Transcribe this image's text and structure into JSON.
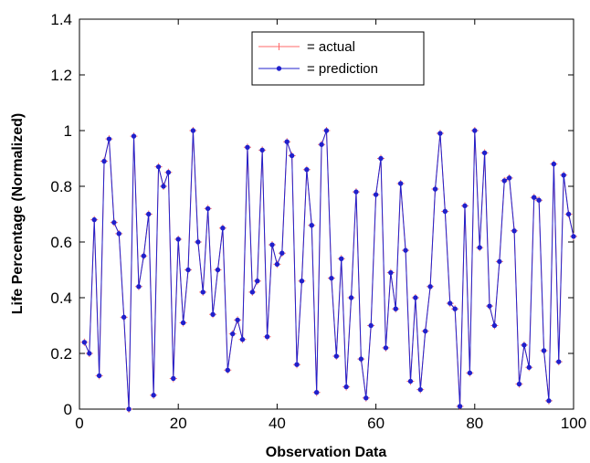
{
  "chart_data": {
    "type": "line",
    "title": "",
    "xlabel": "Observation Data",
    "ylabel": "Life Percentage (Normalized)",
    "xlim": [
      0,
      100
    ],
    "ylim": [
      0,
      1.4
    ],
    "x_ticks": [
      "0",
      "20",
      "40",
      "60",
      "80",
      "100"
    ],
    "y_ticks": [
      "0",
      "0.2",
      "0.4",
      "0.6",
      "0.8",
      "1",
      "1.2",
      "1.4"
    ],
    "grid": false,
    "legend_position": "top-center",
    "series": [
      {
        "name": "= actual",
        "color": "#ff6a6a",
        "marker": "plus",
        "x": [
          1,
          2,
          3,
          4,
          5,
          6,
          7,
          8,
          9,
          10,
          11,
          12,
          13,
          14,
          15,
          16,
          17,
          18,
          19,
          20,
          21,
          22,
          23,
          24,
          25,
          26,
          27,
          28,
          29,
          30,
          31,
          32,
          33,
          34,
          35,
          36,
          37,
          38,
          39,
          40,
          41,
          42,
          43,
          44,
          45,
          46,
          47,
          48,
          49,
          50,
          51,
          52,
          53,
          54,
          55,
          56,
          57,
          58,
          59,
          60,
          61,
          62,
          63,
          64,
          65,
          66,
          67,
          68,
          69,
          70,
          71,
          72,
          73,
          74,
          75,
          76,
          77,
          78,
          79,
          80,
          81,
          82,
          83,
          84,
          85,
          86,
          87,
          88,
          89,
          90,
          91,
          92,
          93,
          94,
          95,
          96,
          97,
          98,
          99,
          100
        ],
        "y": [
          0.24,
          0.2,
          0.68,
          0.12,
          0.89,
          0.97,
          0.67,
          0.63,
          0.33,
          0.0,
          0.98,
          0.44,
          0.55,
          0.7,
          0.05,
          0.87,
          0.8,
          0.85,
          0.11,
          0.61,
          0.31,
          0.5,
          1.0,
          0.6,
          0.42,
          0.72,
          0.34,
          0.5,
          0.65,
          0.14,
          0.27,
          0.32,
          0.25,
          0.94,
          0.42,
          0.46,
          0.93,
          0.26,
          0.59,
          0.52,
          0.56,
          0.96,
          0.91,
          0.16,
          0.46,
          0.86,
          0.66,
          0.06,
          0.95,
          1.0,
          0.47,
          0.19,
          0.54,
          0.08,
          0.4,
          0.78,
          0.18,
          0.04,
          0.3,
          0.77,
          0.9,
          0.22,
          0.49,
          0.36,
          0.81,
          0.57,
          0.1,
          0.4,
          0.07,
          0.28,
          0.44,
          0.79,
          0.99,
          0.71,
          0.38,
          0.36,
          0.01,
          0.73,
          0.13,
          1.0,
          0.58,
          0.92,
          0.37,
          0.3,
          0.53,
          0.82,
          0.83,
          0.64,
          0.09,
          0.23,
          0.15,
          0.76,
          0.75,
          0.21,
          0.03,
          0.88,
          0.17,
          0.84,
          0.7,
          0.62
        ]
      },
      {
        "name": "= prediction",
        "color": "#2020cc",
        "marker": "dot",
        "x": [
          1,
          2,
          3,
          4,
          5,
          6,
          7,
          8,
          9,
          10,
          11,
          12,
          13,
          14,
          15,
          16,
          17,
          18,
          19,
          20,
          21,
          22,
          23,
          24,
          25,
          26,
          27,
          28,
          29,
          30,
          31,
          32,
          33,
          34,
          35,
          36,
          37,
          38,
          39,
          40,
          41,
          42,
          43,
          44,
          45,
          46,
          47,
          48,
          49,
          50,
          51,
          52,
          53,
          54,
          55,
          56,
          57,
          58,
          59,
          60,
          61,
          62,
          63,
          64,
          65,
          66,
          67,
          68,
          69,
          70,
          71,
          72,
          73,
          74,
          75,
          76,
          77,
          78,
          79,
          80,
          81,
          82,
          83,
          84,
          85,
          86,
          87,
          88,
          89,
          90,
          91,
          92,
          93,
          94,
          95,
          96,
          97,
          98,
          99,
          100
        ],
        "y": [
          0.24,
          0.2,
          0.68,
          0.12,
          0.89,
          0.97,
          0.67,
          0.63,
          0.33,
          0.0,
          0.98,
          0.44,
          0.55,
          0.7,
          0.05,
          0.87,
          0.8,
          0.85,
          0.11,
          0.61,
          0.31,
          0.5,
          1.0,
          0.6,
          0.42,
          0.72,
          0.34,
          0.5,
          0.65,
          0.14,
          0.27,
          0.32,
          0.25,
          0.94,
          0.42,
          0.46,
          0.93,
          0.26,
          0.59,
          0.52,
          0.56,
          0.96,
          0.91,
          0.16,
          0.46,
          0.86,
          0.66,
          0.06,
          0.95,
          1.0,
          0.47,
          0.19,
          0.54,
          0.08,
          0.4,
          0.78,
          0.18,
          0.04,
          0.3,
          0.77,
          0.9,
          0.22,
          0.49,
          0.36,
          0.81,
          0.57,
          0.1,
          0.4,
          0.07,
          0.28,
          0.44,
          0.79,
          0.99,
          0.71,
          0.38,
          0.36,
          0.01,
          0.73,
          0.13,
          1.0,
          0.58,
          0.92,
          0.37,
          0.3,
          0.53,
          0.82,
          0.83,
          0.64,
          0.09,
          0.23,
          0.15,
          0.76,
          0.75,
          0.21,
          0.03,
          0.88,
          0.17,
          0.84,
          0.7,
          0.62
        ]
      }
    ]
  }
}
